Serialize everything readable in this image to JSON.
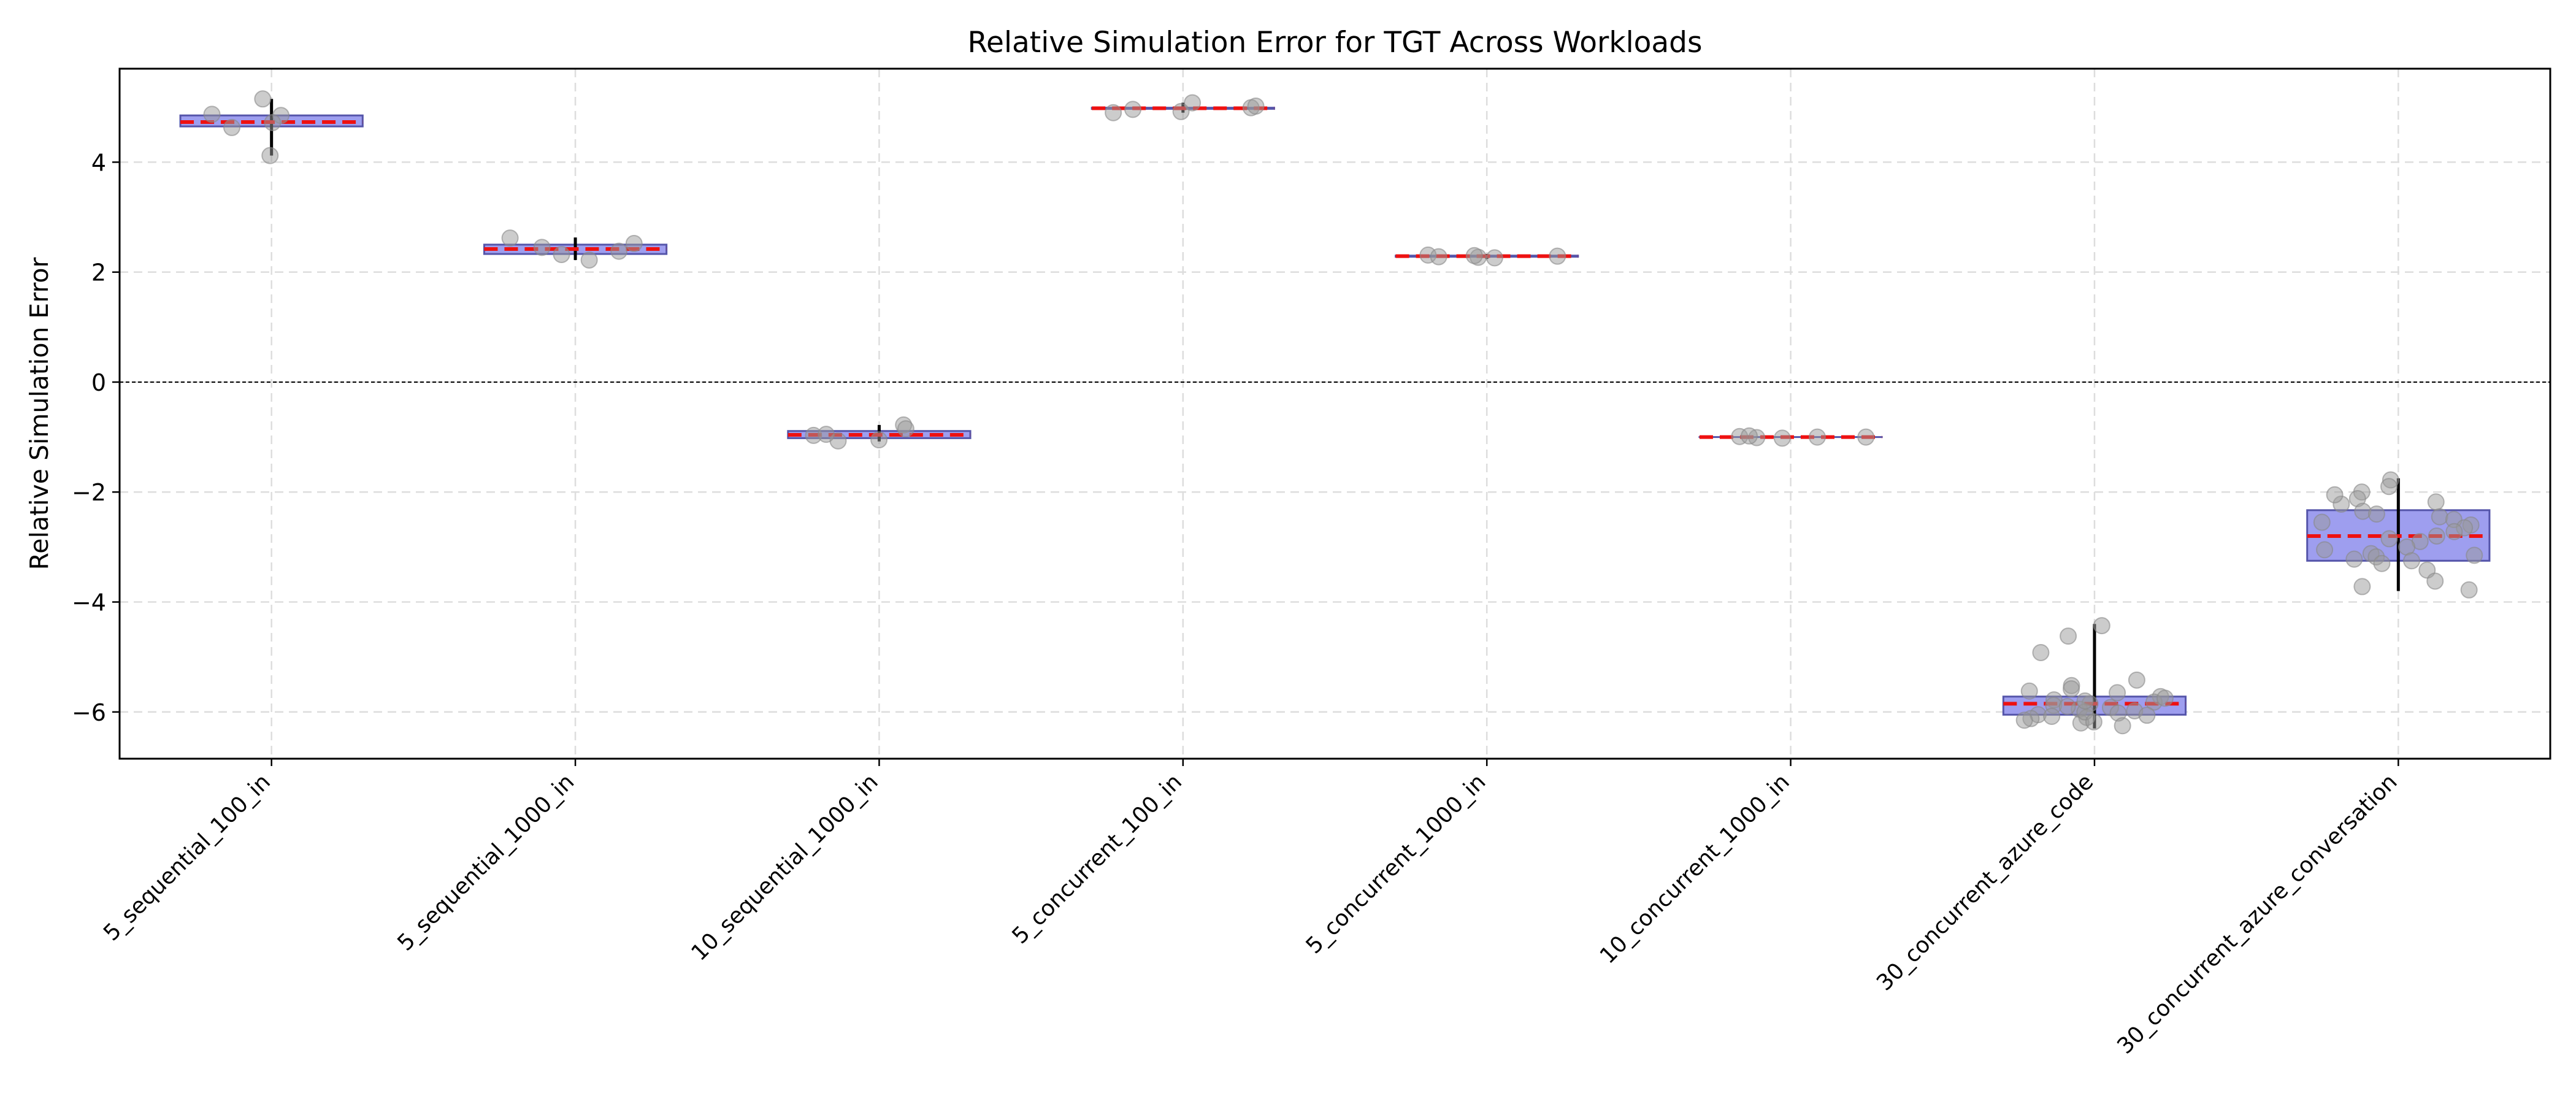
{
  "chart_data": {
    "type": "box",
    "title": "Relative Simulation Error for TGT Across Workloads",
    "xlabel": "",
    "ylabel": "Relative Simulation Error",
    "ylim": [
      -6.85,
      5.7
    ],
    "yticks": [
      -6,
      -4,
      -2,
      0,
      2,
      4
    ],
    "ytick_labels": [
      "−6",
      "−4",
      "−2",
      "0",
      "2",
      "4"
    ],
    "grid": true,
    "reference_line": 0,
    "colors": {
      "box_fill": "#9999ee",
      "box_edge": "#5555aa",
      "median_line": "#ee1111",
      "whisker": "#000000",
      "point": "#999999",
      "grid": "#dddddd"
    },
    "categories": [
      "5_sequential_100_in",
      "5_sequential_1000_in",
      "10_sequential_1000_in",
      "5_concurrent_100_in",
      "5_concurrent_1000_in",
      "10_concurrent_1000_in",
      "30_concurrent_azure_code",
      "30_concurrent_azure_conversation"
    ],
    "boxes": [
      {
        "category": "5_sequential_100_in",
        "q1": 4.65,
        "median": 4.73,
        "q3": 4.85,
        "whisker_low": 4.12,
        "whisker_high": 5.15
      },
      {
        "category": "5_sequential_1000_in",
        "q1": 2.33,
        "median": 2.42,
        "q3": 2.5,
        "whisker_low": 2.22,
        "whisker_high": 2.63
      },
      {
        "category": "10_sequential_1000_in",
        "q1": -1.02,
        "median": -0.96,
        "q3": -0.89,
        "whisker_low": -1.08,
        "whisker_high": -0.78
      },
      {
        "category": "5_concurrent_100_in",
        "q1": 4.97,
        "median": 4.98,
        "q3": 4.99,
        "whisker_low": 4.9,
        "whisker_high": 5.08
      },
      {
        "category": "5_concurrent_1000_in",
        "q1": 2.28,
        "median": 2.29,
        "q3": 2.3,
        "whisker_low": 2.24,
        "whisker_high": 2.33
      },
      {
        "category": "10_concurrent_1000_in",
        "q1": -1.0,
        "median": -1.0,
        "q3": -1.0,
        "whisker_low": -1.02,
        "whisker_high": -0.98
      },
      {
        "category": "30_concurrent_azure_code",
        "q1": -6.05,
        "median": -5.85,
        "q3": -5.72,
        "whisker_low": -6.3,
        "whisker_high": -4.4
      },
      {
        "category": "30_concurrent_azure_conversation",
        "q1": -3.25,
        "median": -2.8,
        "q3": -2.33,
        "whisker_low": -3.8,
        "whisker_high": -1.75
      }
    ],
    "points": [
      [
        4.12,
        4.85,
        4.87,
        4.63,
        5.15,
        4.72
      ],
      [
        2.62,
        2.52,
        2.22,
        2.32,
        2.45,
        2.38
      ],
      [
        -0.78,
        -0.97,
        -1.05,
        -1.07,
        -0.85,
        -0.95
      ],
      [
        5.08,
        4.92,
        4.96,
        4.9,
        4.99,
        5.02
      ],
      [
        2.31,
        2.27,
        2.29,
        2.28,
        2.3,
        2.26
      ],
      [
        -1.0,
        -1.01,
        -0.99,
        -1.0,
        -1.02,
        -0.98
      ],
      [
        -4.43,
        -4.62,
        -4.92,
        -5.42,
        -5.52,
        -5.58,
        -5.62,
        -5.72,
        -5.78,
        -5.82,
        -5.85,
        -5.88,
        -5.92,
        -5.95,
        -5.98,
        -6.02,
        -6.05,
        -6.08,
        -6.1,
        -6.12,
        -6.15,
        -6.2,
        -6.25,
        -5.65,
        -5.75,
        -5.9,
        -6.0,
        -6.18,
        -5.8,
        -6.06
      ],
      [
        -1.78,
        -1.9,
        -2.0,
        -2.12,
        -2.18,
        -2.22,
        -2.35,
        -2.45,
        -2.5,
        -2.6,
        -2.65,
        -2.72,
        -2.8,
        -2.9,
        -3.0,
        -3.05,
        -3.12,
        -3.18,
        -3.22,
        -3.3,
        -3.42,
        -3.62,
        -3.72,
        -3.78,
        -2.55,
        -2.4,
        -3.25,
        -2.85,
        -2.05,
        -3.15
      ]
    ]
  }
}
